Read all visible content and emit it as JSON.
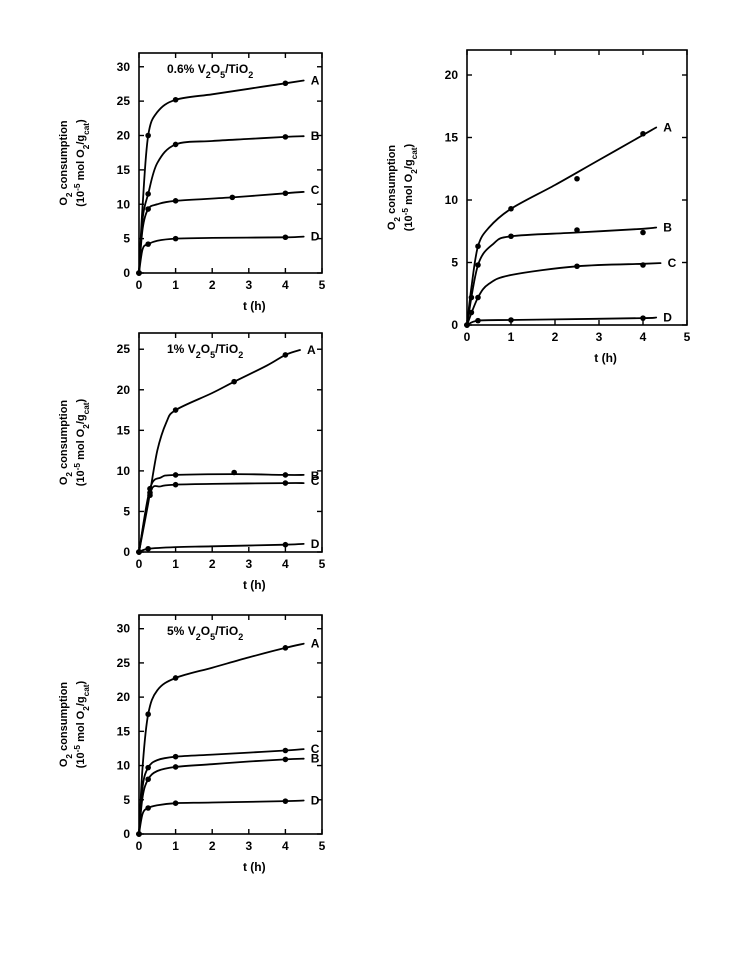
{
  "chart_data": [
    {
      "type": "line",
      "title": "0.6% V2O5/TiO2",
      "xlabel": "t (h)",
      "ylabel": [
        "O2 consumption",
        "(10-5 mol O2/gcat)"
      ],
      "xlim": [
        0,
        5
      ],
      "ylim": [
        0,
        32
      ],
      "xticks": [
        0,
        1,
        2,
        3,
        4,
        5
      ],
      "yticks": [
        0,
        5,
        10,
        15,
        20,
        25,
        30
      ],
      "yticklabels": [
        "0",
        "5",
        "10",
        "15",
        "20",
        "25",
        "30"
      ],
      "series": [
        {
          "name": "A",
          "points": [
            [
              0,
              0
            ],
            [
              0.25,
              20
            ],
            [
              1,
              25.2
            ],
            [
              4,
              27.6
            ]
          ],
          "curve": [
            [
              0,
              0
            ],
            [
              0.1,
              10
            ],
            [
              0.25,
              20
            ],
            [
              0.5,
              23.4
            ],
            [
              1,
              25.2
            ],
            [
              2,
              26
            ],
            [
              3,
              26.8
            ],
            [
              4,
              27.6
            ],
            [
              4.5,
              28
            ]
          ]
        },
        {
          "name": "B",
          "points": [
            [
              0,
              0
            ],
            [
              0.25,
              11.5
            ],
            [
              1,
              18.7
            ],
            [
              4,
              19.8
            ]
          ],
          "curve": [
            [
              0,
              0
            ],
            [
              0.1,
              8
            ],
            [
              0.25,
              11.5
            ],
            [
              0.5,
              16
            ],
            [
              1,
              18.7
            ],
            [
              2,
              19.2
            ],
            [
              3,
              19.5
            ],
            [
              4,
              19.8
            ],
            [
              4.5,
              19.9
            ]
          ]
        },
        {
          "name": "C",
          "points": [
            [
              0,
              0
            ],
            [
              0.25,
              9.3
            ],
            [
              1,
              10.5
            ],
            [
              2.55,
              11
            ],
            [
              4,
              11.6
            ]
          ],
          "curve": [
            [
              0,
              0
            ],
            [
              0.1,
              6.5
            ],
            [
              0.25,
              9.3
            ],
            [
              0.5,
              10
            ],
            [
              1,
              10.5
            ],
            [
              2.55,
              11
            ],
            [
              4,
              11.6
            ],
            [
              4.5,
              11.8
            ]
          ]
        },
        {
          "name": "D",
          "points": [
            [
              0,
              0
            ],
            [
              0.25,
              4.2
            ],
            [
              1,
              5
            ],
            [
              4,
              5.2
            ]
          ],
          "curve": [
            [
              0,
              0
            ],
            [
              0.1,
              3.5
            ],
            [
              0.25,
              4.2
            ],
            [
              0.5,
              4.7
            ],
            [
              1,
              5
            ],
            [
              2,
              5.1
            ],
            [
              4,
              5.2
            ],
            [
              4.5,
              5.3
            ]
          ]
        }
      ]
    },
    {
      "type": "line",
      "title": "1% V2O5/TiO2",
      "xlabel": "t (h)",
      "ylabel": [
        "O2 consumption",
        "(10-5 mol O2/gcat)"
      ],
      "xlim": [
        0,
        5
      ],
      "ylim": [
        0,
        27
      ],
      "xticks": [
        0,
        1,
        2,
        3,
        4,
        5
      ],
      "yticks": [
        0,
        5,
        10,
        15,
        20,
        25
      ],
      "series": [
        {
          "name": "A",
          "points": [
            [
              0,
              0
            ],
            [
              0.3,
              7
            ],
            [
              1,
              17.5
            ],
            [
              2.6,
              21
            ],
            [
              4,
              24.3
            ]
          ],
          "curve": [
            [
              0,
              0
            ],
            [
              0.25,
              6
            ],
            [
              0.5,
              12.5
            ],
            [
              0.75,
              16
            ],
            [
              1,
              17.5
            ],
            [
              2,
              19.6
            ],
            [
              2.6,
              21
            ],
            [
              3.5,
              23
            ],
            [
              4,
              24.3
            ],
            [
              4.4,
              24.9
            ]
          ]
        },
        {
          "name": "B",
          "points": [
            [
              0,
              0
            ],
            [
              0.3,
              7.8
            ],
            [
              1,
              9.5
            ],
            [
              2.6,
              9.8
            ],
            [
              4,
              9.5
            ]
          ],
          "curve": [
            [
              0,
              0
            ],
            [
              0.3,
              7.8
            ],
            [
              0.6,
              9.2
            ],
            [
              1,
              9.5
            ],
            [
              2.6,
              9.6
            ],
            [
              4,
              9.5
            ],
            [
              4.5,
              9.5
            ]
          ]
        },
        {
          "name": "C",
          "points": [
            [
              0,
              0
            ],
            [
              0.3,
              7.3
            ],
            [
              1,
              8.3
            ],
            [
              4,
              8.5
            ]
          ],
          "curve": [
            [
              0,
              0
            ],
            [
              0.3,
              7.3
            ],
            [
              0.6,
              8.1
            ],
            [
              1,
              8.3
            ],
            [
              2,
              8.4
            ],
            [
              4,
              8.5
            ],
            [
              4.5,
              8.5
            ]
          ]
        },
        {
          "name": "D",
          "points": [
            [
              0,
              0
            ],
            [
              0.25,
              0.4
            ],
            [
              4,
              0.9
            ]
          ],
          "curve": [
            [
              0,
              0
            ],
            [
              0.25,
              0.4
            ],
            [
              1,
              0.6
            ],
            [
              2,
              0.7
            ],
            [
              4,
              0.9
            ],
            [
              4.5,
              1
            ]
          ]
        }
      ]
    },
    {
      "type": "line",
      "title": "5% V2O5/TiO2",
      "xlabel": "t (h)",
      "ylabel": [
        "O2 consumption",
        "(10-5 mol O2/gcat)"
      ],
      "xlim": [
        0,
        5
      ],
      "ylim": [
        0,
        32
      ],
      "xticks": [
        0,
        1,
        2,
        3,
        4,
        5
      ],
      "yticks": [
        0,
        5,
        10,
        15,
        20,
        25,
        30
      ],
      "series": [
        {
          "name": "A",
          "points": [
            [
              0,
              0
            ],
            [
              0.25,
              17.5
            ],
            [
              1,
              22.8
            ],
            [
              4,
              27.2
            ]
          ],
          "curve": [
            [
              0,
              0
            ],
            [
              0.1,
              10
            ],
            [
              0.25,
              17.5
            ],
            [
              0.5,
              21
            ],
            [
              1,
              22.8
            ],
            [
              2,
              24.3
            ],
            [
              3,
              25.8
            ],
            [
              4,
              27.2
            ],
            [
              4.5,
              27.8
            ]
          ]
        },
        {
          "name": "C",
          "points": [
            [
              0,
              0
            ],
            [
              0.25,
              9.7
            ],
            [
              1,
              11.3
            ],
            [
              4,
              12.2
            ]
          ],
          "curve": [
            [
              0,
              0
            ],
            [
              0.1,
              7
            ],
            [
              0.25,
              9.7
            ],
            [
              0.5,
              10.8
            ],
            [
              1,
              11.3
            ],
            [
              2,
              11.6
            ],
            [
              3,
              11.9
            ],
            [
              4,
              12.2
            ],
            [
              4.5,
              12.4
            ]
          ]
        },
        {
          "name": "B",
          "points": [
            [
              0,
              0
            ],
            [
              0.25,
              8
            ],
            [
              1,
              9.8
            ],
            [
              4,
              10.9
            ]
          ],
          "curve": [
            [
              0,
              0
            ],
            [
              0.1,
              5.5
            ],
            [
              0.25,
              8
            ],
            [
              0.5,
              9.2
            ],
            [
              1,
              9.8
            ],
            [
              2,
              10.2
            ],
            [
              3,
              10.6
            ],
            [
              4,
              10.9
            ],
            [
              4.5,
              11
            ]
          ]
        },
        {
          "name": "D",
          "points": [
            [
              0,
              0
            ],
            [
              0.25,
              3.8
            ],
            [
              1,
              4.5
            ],
            [
              4,
              4.8
            ]
          ],
          "curve": [
            [
              0,
              0
            ],
            [
              0.1,
              3
            ],
            [
              0.25,
              3.8
            ],
            [
              0.5,
              4.2
            ],
            [
              1,
              4.5
            ],
            [
              2,
              4.6
            ],
            [
              4,
              4.8
            ],
            [
              4.5,
              4.9
            ]
          ]
        }
      ]
    },
    {
      "type": "line",
      "title": "",
      "xlabel": "t (h)",
      "ylabel": [
        "O2 consumption",
        "(10-5 mol O2/gcat)"
      ],
      "xlim": [
        0,
        5
      ],
      "ylim": [
        0,
        22
      ],
      "xticks": [
        0,
        1,
        2,
        3,
        4,
        5
      ],
      "yticks": [
        0,
        5,
        10,
        15,
        20
      ],
      "series": [
        {
          "name": "A",
          "points": [
            [
              0,
              0
            ],
            [
              0.1,
              2.2
            ],
            [
              0.25,
              6.3
            ],
            [
              1,
              9.3
            ],
            [
              2.5,
              11.7
            ],
            [
              4,
              15.3
            ]
          ],
          "curve": [
            [
              0,
              0
            ],
            [
              0.1,
              3
            ],
            [
              0.25,
              6.3
            ],
            [
              0.5,
              7.8
            ],
            [
              1,
              9.3
            ],
            [
              2,
              11.2
            ],
            [
              3,
              13.2
            ],
            [
              4,
              15.2
            ],
            [
              4.3,
              15.8
            ]
          ]
        },
        {
          "name": "B",
          "points": [
            [
              0,
              0
            ],
            [
              0.25,
              4.8
            ],
            [
              1,
              7.1
            ],
            [
              2.5,
              7.6
            ],
            [
              4,
              7.4
            ]
          ],
          "curve": [
            [
              0,
              0
            ],
            [
              0.25,
              4.8
            ],
            [
              0.6,
              6.5
            ],
            [
              1,
              7.1
            ],
            [
              2.5,
              7.4
            ],
            [
              4,
              7.7
            ],
            [
              4.3,
              7.8
            ]
          ]
        },
        {
          "name": "C",
          "points": [
            [
              0,
              0
            ],
            [
              0.1,
              1
            ],
            [
              0.25,
              2.2
            ],
            [
              2.5,
              4.7
            ],
            [
              4,
              4.8
            ]
          ],
          "curve": [
            [
              0,
              0
            ],
            [
              0.25,
              2.2
            ],
            [
              0.5,
              3.3
            ],
            [
              1,
              4
            ],
            [
              2.5,
              4.7
            ],
            [
              4,
              4.9
            ],
            [
              4.4,
              4.95
            ]
          ]
        },
        {
          "name": "D",
          "points": [
            [
              0,
              0
            ],
            [
              0.25,
              0.35
            ],
            [
              1,
              0.4
            ],
            [
              4,
              0.55
            ]
          ],
          "curve": [
            [
              0,
              0
            ],
            [
              0.25,
              0.35
            ],
            [
              1,
              0.4
            ],
            [
              2,
              0.45
            ],
            [
              4,
              0.55
            ],
            [
              4.3,
              0.6
            ]
          ]
        }
      ]
    }
  ]
}
